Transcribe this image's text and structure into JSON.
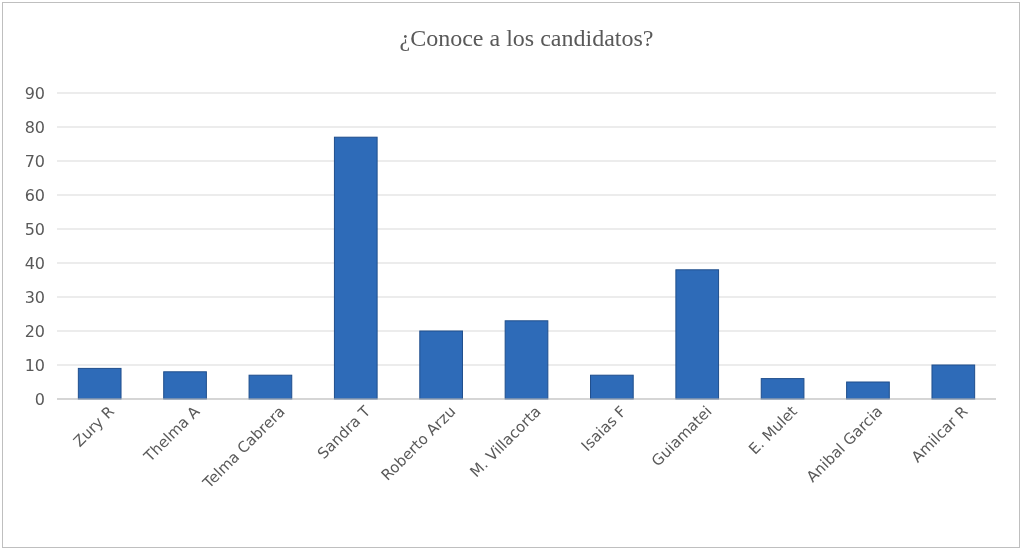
{
  "chart_data": {
    "type": "bar",
    "title": "¿Conoce a los candidatos?",
    "categories": [
      "Zury R",
      "Thelma A",
      "Telma Cabrera",
      "Sandra T",
      "Roberto Arzu",
      "M. Villacorta",
      "Isaias F",
      "Guiamatei",
      "E. Mulet",
      "Anibal Garcia",
      "Amilcar R"
    ],
    "values": [
      9,
      8,
      7,
      77,
      20,
      23,
      7,
      38,
      6,
      5,
      10
    ],
    "color": "#2e6bb8",
    "ylim": [
      0,
      90
    ],
    "yticks": [
      0,
      10,
      20,
      30,
      40,
      50,
      60,
      70,
      80,
      90
    ],
    "grid": true
  }
}
